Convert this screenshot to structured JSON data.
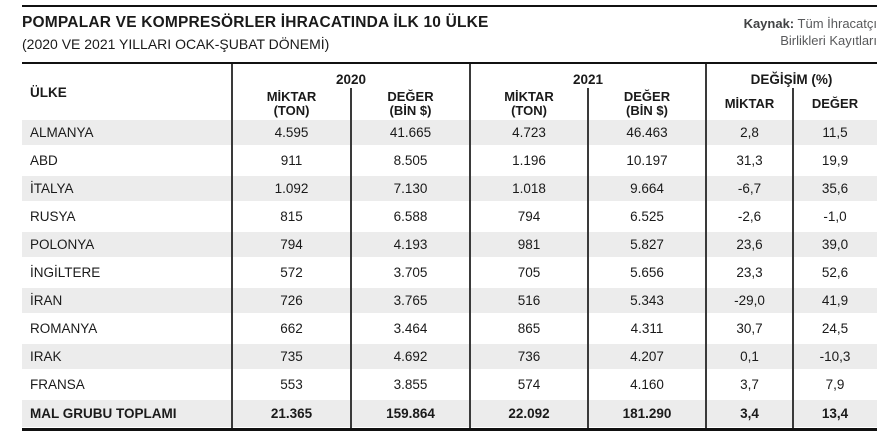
{
  "header": {
    "title": "POMPALAR VE KOMPRESÖRLER İHRACATINDA İLK 10 ÜLKE",
    "subtitle": "(2020 VE 2021 YILLARI OCAK-ŞUBAT DÖNEMİ)",
    "source_label": "Kaynak:",
    "source_line1": "Tüm İhracatçı",
    "source_line2": "Birlikleri Kayıtları"
  },
  "table": {
    "country_header": "ÜLKE",
    "group_headers": [
      "2020",
      "2021",
      "DEĞİŞİM (%)"
    ],
    "sub_headers": [
      "MİKTAR\n(TON)",
      "DEĞER\n(BİN $)",
      "MİKTAR\n(TON)",
      "DEĞER\n(BİN $)",
      "MİKTAR",
      "DEĞER"
    ],
    "rows": [
      {
        "country": "ALMANYA",
        "values": [
          "4.595",
          "41.665",
          "4.723",
          "46.463",
          "2,8",
          "11,5"
        ]
      },
      {
        "country": "ABD",
        "values": [
          "911",
          "8.505",
          "1.196",
          "10.197",
          "31,3",
          "19,9"
        ]
      },
      {
        "country": "İTALYA",
        "values": [
          "1.092",
          "7.130",
          "1.018",
          "9.664",
          "-6,7",
          "35,6"
        ]
      },
      {
        "country": "RUSYA",
        "values": [
          "815",
          "6.588",
          "794",
          "6.525",
          "-2,6",
          "-1,0"
        ]
      },
      {
        "country": "POLONYA",
        "values": [
          "794",
          "4.193",
          "981",
          "5.827",
          "23,6",
          "39,0"
        ]
      },
      {
        "country": "İNGİLTERE",
        "values": [
          "572",
          "3.705",
          "705",
          "5.656",
          "23,3",
          "52,6"
        ]
      },
      {
        "country": "İRAN",
        "values": [
          "726",
          "3.765",
          "516",
          "5.343",
          "-29,0",
          "41,9"
        ]
      },
      {
        "country": "ROMANYA",
        "values": [
          "662",
          "3.464",
          "865",
          "4.311",
          "30,7",
          "24,5"
        ]
      },
      {
        "country": "IRAK",
        "values": [
          "735",
          "4.692",
          "736",
          "4.207",
          "0,1",
          "-10,3"
        ]
      },
      {
        "country": "FRANSA",
        "values": [
          "553",
          "3.855",
          "574",
          "4.160",
          "3,7",
          "7,9"
        ]
      },
      {
        "country": "MAL GRUBU TOPLAMI",
        "values": [
          "21.365",
          "159.864",
          "22.092",
          "181.290",
          "3,4",
          "13,4"
        ]
      }
    ]
  },
  "colors": {
    "row_shade": "#ececec",
    "column_line": "#3a3a3a",
    "border": "#111111",
    "source_text": "#58595b"
  },
  "chart_data": {
    "type": "table",
    "title": "POMPALAR VE KOMPRESÖRLER İHRACATINDA İLK 10 ÜLKE (2020 VE 2021 YILLARI OCAK-ŞUBAT DÖNEMİ)",
    "source": "Kaynak: Tüm İhracatçı Birlikleri Kayıtları",
    "columns": [
      "ÜLKE",
      "2020 MİKTAR (TON)",
      "2020 DEĞER (BİN $)",
      "2021 MİKTAR (TON)",
      "2021 DEĞER (BİN $)",
      "DEĞİŞİM MİKTAR (%)",
      "DEĞİŞİM DEĞER (%)"
    ],
    "rows": [
      [
        "ALMANYA",
        4595,
        41665,
        4723,
        46463,
        2.8,
        11.5
      ],
      [
        "ABD",
        911,
        8505,
        1196,
        10197,
        31.3,
        19.9
      ],
      [
        "İTALYA",
        1092,
        7130,
        1018,
        9664,
        -6.7,
        35.6
      ],
      [
        "RUSYA",
        815,
        6588,
        794,
        6525,
        -2.6,
        -1.0
      ],
      [
        "POLONYA",
        794,
        4193,
        981,
        5827,
        23.6,
        39.0
      ],
      [
        "İNGİLTERE",
        572,
        3705,
        705,
        5656,
        23.3,
        52.6
      ],
      [
        "İRAN",
        726,
        3765,
        516,
        5343,
        -29.0,
        41.9
      ],
      [
        "ROMANYA",
        662,
        3464,
        865,
        4311,
        30.7,
        24.5
      ],
      [
        "IRAK",
        735,
        4692,
        736,
        4207,
        0.1,
        -10.3
      ],
      [
        "FRANSA",
        553,
        3855,
        574,
        4160,
        3.7,
        7.9
      ],
      [
        "MAL GRUBU TOPLAMI",
        21365,
        159864,
        22092,
        181290,
        3.4,
        13.4
      ]
    ]
  }
}
